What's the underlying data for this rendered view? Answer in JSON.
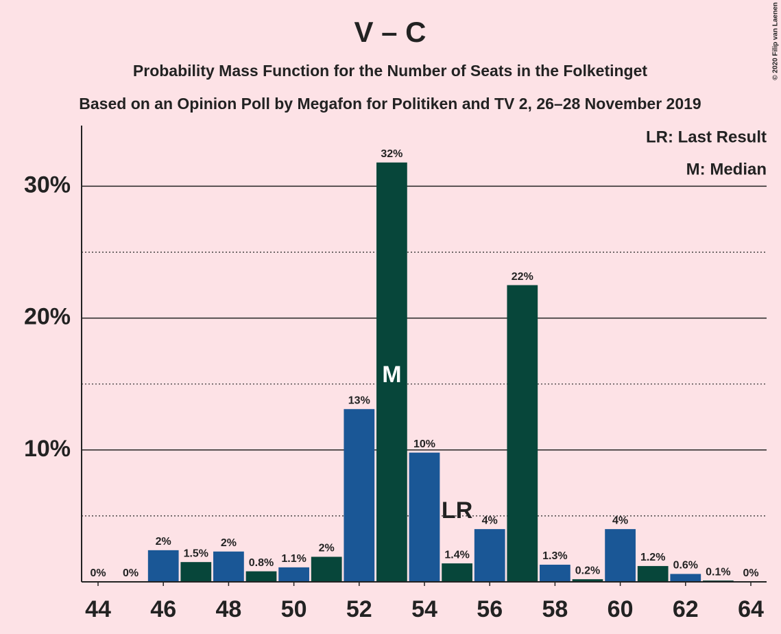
{
  "chart_data": {
    "type": "bar",
    "title": "V – C",
    "subtitle": "Probability Mass Function for the Number of Seats in the Folketinget",
    "subtitle2": "Based on an Opinion Poll by Megafon for Politiken and TV 2, 26–28 November 2019",
    "copyright": "© 2020 Filip van Laenen",
    "legend": [
      "LR: Last Result",
      "M: Median"
    ],
    "x": [
      44,
      45,
      46,
      47,
      48,
      49,
      50,
      51,
      52,
      53,
      54,
      55,
      56,
      57,
      58,
      59,
      60,
      61,
      62,
      63,
      64
    ],
    "values": [
      0,
      0,
      2.4,
      1.5,
      2.3,
      0.8,
      1.1,
      1.9,
      13.1,
      31.8,
      9.8,
      1.4,
      4.0,
      22.5,
      1.3,
      0.2,
      4.0,
      1.2,
      0.6,
      0.1,
      0
    ],
    "value_labels": [
      "0%",
      "0%",
      "2%",
      "1.5%",
      "2%",
      "0.8%",
      "1.1%",
      "2%",
      "13%",
      "32%",
      "10%",
      "1.4%",
      "4%",
      "22%",
      "1.3%",
      "0.2%",
      "4%",
      "1.2%",
      "0.6%",
      "0.1%",
      "0%"
    ],
    "colors": [
      "#1a5796",
      "#07463a"
    ],
    "xlim": [
      44,
      64
    ],
    "xticks": [
      44,
      46,
      48,
      50,
      52,
      54,
      56,
      58,
      60,
      62,
      64
    ],
    "ylim": [
      0,
      34.6
    ],
    "yticks": [
      {
        "value": 10,
        "label": "10%"
      },
      {
        "value": 20,
        "label": "20%"
      },
      {
        "value": 30,
        "label": "30%"
      }
    ],
    "minor_yticks": [
      5,
      15,
      25
    ],
    "grid": true,
    "median": {
      "x": 53,
      "label": "M"
    },
    "last_result": {
      "x": 55,
      "label": "LR"
    }
  }
}
